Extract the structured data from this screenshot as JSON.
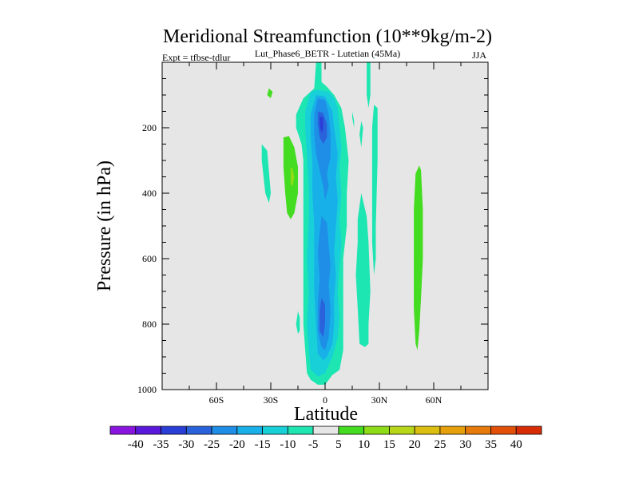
{
  "chart_data": {
    "type": "contour",
    "title": "Meridional Streamfunction (10**9kg/m-2)",
    "experiment_label": "Expt = tfbse-tdlur",
    "subtitle": "Lut_Phase6_BETR - Lutetian (45Ma)",
    "season": "JJA",
    "xlabel": "Latitude",
    "ylabel": "Pressure (in hPa)",
    "xlim": [
      -90,
      90
    ],
    "ylim": [
      1000,
      0
    ],
    "x_ticks": [
      {
        "value": -60,
        "label": "60S"
      },
      {
        "value": -30,
        "label": "30S"
      },
      {
        "value": 0,
        "label": "0"
      },
      {
        "value": 30,
        "label": "30N"
      },
      {
        "value": 60,
        "label": "60N"
      }
    ],
    "y_ticks": [
      {
        "value": 200,
        "label": "200"
      },
      {
        "value": 400,
        "label": "400"
      },
      {
        "value": 600,
        "label": "600"
      },
      {
        "value": 800,
        "label": "800"
      },
      {
        "value": 1000,
        "label": "1000"
      }
    ],
    "background_color": "#e6e6e6",
    "colorbar": {
      "levels": [
        "-40",
        "-35",
        "-30",
        "-25",
        "-20",
        "-15",
        "-10",
        "-5",
        "5",
        "10",
        "15",
        "20",
        "25",
        "30",
        "35",
        "40"
      ],
      "colors": [
        "#8a14e0",
        "#5a18dc",
        "#2a3ed8",
        "#2a62dc",
        "#1e8ee6",
        "#18b0e8",
        "#18d0d8",
        "#1ee6b2",
        "#e6e6e6",
        "#44dc20",
        "#8edc18",
        "#b8d618",
        "#dcbe10",
        "#e6a00c",
        "#e67a0a",
        "#e25008",
        "#d82c06"
      ]
    },
    "regions": [
      {
        "name": "-5",
        "color": "#1ee6b2",
        "points": [
          [
            -5,
            0
          ],
          [
            -2,
            0
          ],
          [
            -2,
            60
          ],
          [
            1,
            75
          ],
          [
            5,
            100
          ],
          [
            9,
            140
          ],
          [
            11,
            200
          ],
          [
            13,
            300
          ],
          [
            12,
            400
          ],
          [
            12,
            500
          ],
          [
            10,
            600
          ],
          [
            10,
            700
          ],
          [
            10,
            800
          ],
          [
            10,
            880
          ],
          [
            8,
            940
          ],
          [
            4,
            955
          ],
          [
            0,
            985
          ],
          [
            -4,
            985
          ],
          [
            -8,
            970
          ],
          [
            -10,
            950
          ],
          [
            -11,
            880
          ],
          [
            -12,
            800
          ],
          [
            -12,
            700
          ],
          [
            -12,
            600
          ],
          [
            -12,
            500
          ],
          [
            -12,
            400
          ],
          [
            -12,
            300
          ],
          [
            -13,
            250
          ],
          [
            -16,
            200
          ],
          [
            -16,
            160
          ],
          [
            -12,
            110
          ],
          [
            -6,
            80
          ]
        ]
      },
      {
        "name": "-5",
        "color": "#1ee6b2",
        "points": [
          [
            23,
            0
          ],
          [
            25,
            0
          ],
          [
            25,
            100
          ],
          [
            24,
            140
          ],
          [
            23,
            100
          ]
        ]
      },
      {
        "name": "-5",
        "color": "#1ee6b2",
        "points": [
          [
            27,
            130
          ],
          [
            29,
            140
          ],
          [
            29,
            300
          ],
          [
            28,
            500
          ],
          [
            28,
            600
          ],
          [
            27,
            650
          ],
          [
            26,
            550
          ],
          [
            26,
            400
          ],
          [
            26,
            200
          ]
        ]
      },
      {
        "name": "-5",
        "color": "#1ee6b2",
        "points": [
          [
            20,
            180
          ],
          [
            21,
            200
          ],
          [
            20,
            260
          ],
          [
            19,
            220
          ]
        ]
      },
      {
        "name": "-5",
        "color": "#1ee6b2",
        "points": [
          [
            15,
            150
          ],
          [
            16,
            180
          ],
          [
            16,
            200
          ],
          [
            15,
            170
          ]
        ]
      },
      {
        "name": "-5",
        "color": "#1ee6b2",
        "points": [
          [
            20,
            400
          ],
          [
            23,
            470
          ],
          [
            24,
            550
          ],
          [
            25,
            700
          ],
          [
            24,
            800
          ],
          [
            24,
            860
          ],
          [
            22,
            870
          ],
          [
            19,
            860
          ],
          [
            18,
            750
          ],
          [
            17,
            650
          ],
          [
            18,
            550
          ],
          [
            18,
            480
          ]
        ]
      },
      {
        "name": "-5",
        "color": "#1ee6b2",
        "points": [
          [
            -35,
            250
          ],
          [
            -32,
            270
          ],
          [
            -30,
            400
          ],
          [
            -31,
            430
          ],
          [
            -33,
            400
          ],
          [
            -35,
            300
          ]
        ]
      },
      {
        "name": "-5",
        "color": "#1ee6b2",
        "points": [
          [
            -15,
            760
          ],
          [
            -14,
            780
          ],
          [
            -14,
            820
          ],
          [
            -15,
            830
          ],
          [
            -16,
            800
          ]
        ]
      },
      {
        "name": "-10",
        "color": "#18d0d8",
        "points": [
          [
            -8,
            90
          ],
          [
            -4,
            85
          ],
          [
            2,
            90
          ],
          [
            5,
            110
          ],
          [
            7,
            140
          ],
          [
            8,
            200
          ],
          [
            9,
            260
          ],
          [
            8,
            320
          ],
          [
            9,
            400
          ],
          [
            8,
            480
          ],
          [
            9,
            560
          ],
          [
            8,
            620
          ],
          [
            7,
            700
          ],
          [
            8,
            780
          ],
          [
            7,
            840
          ],
          [
            4,
            900
          ],
          [
            0,
            950
          ],
          [
            -4,
            960
          ],
          [
            -8,
            940
          ],
          [
            -9,
            880
          ],
          [
            -10,
            800
          ],
          [
            -9,
            700
          ],
          [
            -10,
            600
          ],
          [
            -9,
            480
          ],
          [
            -9,
            380
          ],
          [
            -10,
            280
          ],
          [
            -11,
            200
          ],
          [
            -11,
            150
          ]
        ]
      },
      {
        "name": "-15",
        "color": "#18b0e8",
        "points": [
          [
            -5,
            100
          ],
          [
            0,
            105
          ],
          [
            4,
            150
          ],
          [
            5,
            200
          ],
          [
            7,
            280
          ],
          [
            6,
            350
          ],
          [
            7,
            420
          ],
          [
            6,
            500
          ],
          [
            5,
            580
          ],
          [
            6,
            650
          ],
          [
            5,
            720
          ],
          [
            5,
            800
          ],
          [
            4,
            860
          ],
          [
            1,
            900
          ],
          [
            -1,
            910
          ],
          [
            -4,
            890
          ],
          [
            -5,
            800
          ],
          [
            -6,
            700
          ],
          [
            -6,
            600
          ],
          [
            -6,
            500
          ],
          [
            -7,
            400
          ],
          [
            -7,
            300
          ],
          [
            -8,
            230
          ],
          [
            -8,
            160
          ]
        ]
      },
      {
        "name": "-20",
        "color": "#1e8ee6",
        "points": [
          [
            -4,
            110
          ],
          [
            0,
            115
          ],
          [
            2,
            160
          ],
          [
            3,
            220
          ],
          [
            3,
            290
          ],
          [
            1,
            340
          ],
          [
            2,
            380
          ],
          [
            0,
            420
          ],
          [
            -1,
            380
          ],
          [
            -3,
            330
          ],
          [
            -5,
            280
          ],
          [
            -6,
            220
          ],
          [
            -6,
            160
          ]
        ]
      },
      {
        "name": "-20",
        "color": "#1e8ee6",
        "points": [
          [
            -2,
            470
          ],
          [
            1,
            490
          ],
          [
            2,
            560
          ],
          [
            3,
            620
          ],
          [
            2,
            680
          ],
          [
            3,
            760
          ],
          [
            2,
            840
          ],
          [
            0,
            880
          ],
          [
            -2,
            870
          ],
          [
            -4,
            820
          ],
          [
            -4,
            740
          ],
          [
            -3,
            660
          ],
          [
            -4,
            580
          ],
          [
            -3,
            520
          ]
        ]
      },
      {
        "name": "-25",
        "color": "#2a62dc",
        "points": [
          [
            -4,
            150
          ],
          [
            -1,
            155
          ],
          [
            1,
            190
          ],
          [
            1,
            230
          ],
          [
            -1,
            250
          ],
          [
            -3,
            230
          ],
          [
            -4,
            190
          ]
        ]
      },
      {
        "name": "-25",
        "color": "#2a62dc",
        "points": [
          [
            -2,
            720
          ],
          [
            0,
            740
          ],
          [
            0,
            800
          ],
          [
            -1,
            840
          ],
          [
            -3,
            820
          ],
          [
            -3,
            760
          ]
        ]
      },
      {
        "name": "-30",
        "color": "#2a3ed8",
        "points": [
          [
            -3,
            165
          ],
          [
            -1,
            170
          ],
          [
            -1,
            205
          ],
          [
            -2,
            215
          ],
          [
            -3,
            195
          ]
        ]
      },
      {
        "name": "5",
        "color": "#44dc20",
        "points": [
          [
            -23,
            230
          ],
          [
            -20,
            225
          ],
          [
            -17,
            260
          ],
          [
            -15,
            320
          ],
          [
            -15,
            400
          ],
          [
            -17,
            460
          ],
          [
            -19,
            480
          ],
          [
            -21,
            460
          ],
          [
            -22,
            400
          ],
          [
            -23,
            320
          ]
        ]
      },
      {
        "name": "10",
        "color": "#8edc18",
        "points": [
          [
            -19,
            320
          ],
          [
            -18,
            325
          ],
          [
            -17,
            350
          ],
          [
            -18,
            380
          ],
          [
            -19,
            370
          ]
        ]
      },
      {
        "name": "5",
        "color": "#44dc20",
        "points": [
          [
            -31,
            80
          ],
          [
            -29,
            90
          ],
          [
            -30,
            110
          ],
          [
            -32,
            100
          ]
        ]
      },
      {
        "name": "5",
        "color": "#44dc20",
        "points": [
          [
            52,
            315
          ],
          [
            53,
            330
          ],
          [
            54,
            450
          ],
          [
            54,
            600
          ],
          [
            53,
            720
          ],
          [
            52,
            820
          ],
          [
            51,
            880
          ],
          [
            50,
            860
          ],
          [
            49,
            750
          ],
          [
            49,
            600
          ],
          [
            49,
            450
          ],
          [
            50,
            340
          ]
        ]
      }
    ]
  }
}
